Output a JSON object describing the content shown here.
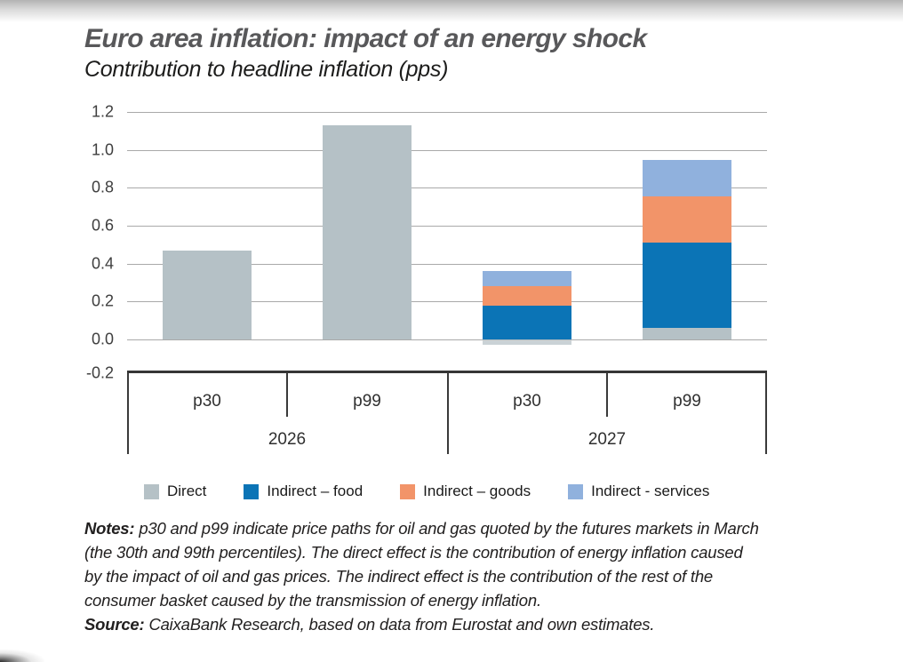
{
  "chart_data": {
    "type": "bar",
    "stacked": true,
    "title": "Euro area inflation: impact of an energy shock",
    "subtitle": "Contribution to headline inflation (pps)",
    "ylabel": "pps",
    "ylim": [
      -0.2,
      1.2
    ],
    "grid": true,
    "legend_position": "bottom",
    "y_ticks": [
      "1.2",
      "1.0",
      "0.8",
      "0.6",
      "0.4",
      "0.2",
      "0.0",
      "-0.2"
    ],
    "groups": [
      {
        "label": "2026",
        "categories": [
          "p30",
          "p99"
        ]
      },
      {
        "label": "2027",
        "categories": [
          "p30",
          "p99"
        ]
      }
    ],
    "series": [
      {
        "name": "Direct",
        "color": "#b5c1c6",
        "values": [
          0.47,
          1.13,
          -0.03,
          0.06
        ]
      },
      {
        "name": "Indirect – food",
        "color": "#0b74b6",
        "values": [
          0,
          0,
          0.18,
          0.45
        ]
      },
      {
        "name": "Indirect – goods",
        "color": "#f29469",
        "values": [
          0,
          0,
          0.1,
          0.245
        ]
      },
      {
        "name": "Indirect - services",
        "color": "#90b1dd",
        "values": [
          0,
          0,
          0.08,
          0.19
        ]
      }
    ],
    "bar_totals": [
      0.47,
      1.13,
      0.36,
      0.945
    ]
  },
  "notes": {
    "label": "Notes:",
    "lines": [
      "p30 and p99 indicate price paths for oil and gas quoted by the futures markets in March",
      "(the 30th and 99th percentiles). The direct effect is the contribution of energy inflation caused",
      "by the impact of oil and gas prices. The indirect effect is the contribution of the rest of the",
      "consumer basket caused by the transmission of energy inflation."
    ],
    "source_label": "Source:",
    "source_text": "CaixaBank Research, based on data from Eurostat and own estimates."
  }
}
